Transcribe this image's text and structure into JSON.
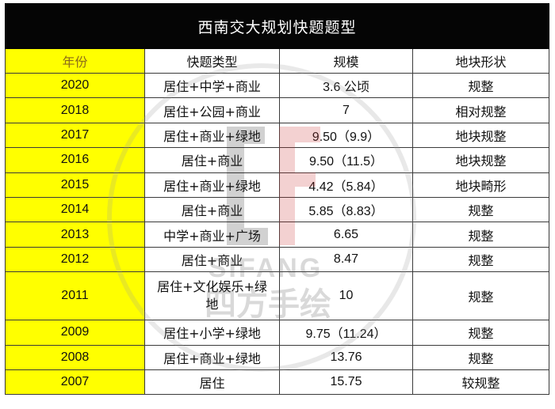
{
  "title": "西南交大规划快题题型",
  "headers": {
    "year": "年份",
    "type": "快题类型",
    "size": "规模",
    "shape": "地块形状"
  },
  "rows": [
    {
      "year": "2020",
      "type": "居住+中学+商业",
      "size": "3.6 公顷",
      "shape": "规整"
    },
    {
      "year": "2018",
      "type": "居住+公园+商业",
      "size": "7",
      "shape": "相对规整"
    },
    {
      "year": "2017",
      "type": "居住+商业+绿地",
      "size": "9.50（9.9）",
      "shape": "地块规整"
    },
    {
      "year": "2016",
      "type": "居住+商业",
      "size": "9.50（11.5）",
      "shape": "地块规整"
    },
    {
      "year": "2015",
      "type": "居住+商业+绿地",
      "size": "4.42（5.84）",
      "shape": "地块畸形"
    },
    {
      "year": "2014",
      "type": "居住+商业",
      "size": "5.85（8.83）",
      "shape": "规整"
    },
    {
      "year": "2013",
      "type": "中学+商业+广场",
      "size": "6.65",
      "shape": "规整"
    },
    {
      "year": "2012",
      "type": "居住+商业",
      "size": "8.47",
      "shape": "规整"
    },
    {
      "year": "2011",
      "type": "居住+文化娱乐+绿地",
      "size": "10",
      "shape": "规整"
    },
    {
      "year": "2009",
      "type": "居住+小学+绿地",
      "size": "9.75（11.24）",
      "shape": "规整"
    },
    {
      "year": "2008",
      "type": "居住+商业+绿地",
      "size": "13.76",
      "shape": "规整"
    },
    {
      "year": "2007",
      "type": "居住",
      "size": "15.75",
      "shape": "较规整"
    }
  ],
  "watermark": {
    "brand": "SIFANG",
    "chinese": "四方手绘"
  },
  "colors": {
    "title_bg": "#050505",
    "year_bg": "#ffff00",
    "header_text": "#8a6a1a",
    "watermark_red": "#d9534f"
  }
}
